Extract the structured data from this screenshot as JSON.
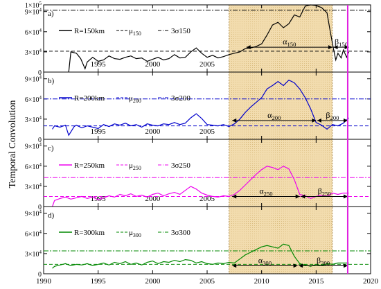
{
  "figure": {
    "ylabel": "Temporal Convolution",
    "x_ticks": [
      1990,
      1995,
      2000,
      2005,
      2010,
      2015,
      2020
    ],
    "colors": {
      "shade": "#f2dcae",
      "marker": "#e020e0"
    }
  },
  "chart_data": [
    {
      "type": "line",
      "panel": "a)",
      "series_name": "R=150km",
      "mu_label": "μ150",
      "sigma_label": "3σ150",
      "color": "#000000",
      "ylim": [
        0,
        100000
      ],
      "y_ticks": [
        "0",
        "3×10⁴",
        "6×10⁴",
        "9×10⁴",
        "1×10⁵"
      ],
      "x_ticks": [
        "1995",
        "2000",
        "2005"
      ],
      "mu": 31000,
      "sigma3": 92000,
      "alpha_label": "α150",
      "beta_label": "β150",
      "arrow_y": 37000,
      "alpha_range": [
        2008.6,
        2016.5
      ],
      "beta_range": [
        2016.6,
        2018.0
      ],
      "x": [
        1992.3,
        1992.5,
        1993.0,
        1993.4,
        1993.8,
        1994.0,
        1994.5,
        1995.0,
        1995.5,
        1996.0,
        1996.5,
        1997.0,
        1997.5,
        1998.0,
        1998.5,
        1999.0,
        1999.5,
        2000.0,
        2000.5,
        2001.0,
        2001.5,
        2002.0,
        2002.5,
        2003.0,
        2003.5,
        2004.0,
        2004.5,
        2005.0,
        2005.5,
        2006.0,
        2006.5,
        2007.0,
        2007.5,
        2008.0,
        2008.5,
        2009.0,
        2009.5,
        2010.0,
        2010.5,
        2011.0,
        2011.5,
        2012.0,
        2012.5,
        2013.0,
        2013.5,
        2014.0,
        2014.5,
        2015.0,
        2015.5,
        2016.0,
        2016.3,
        2016.6,
        2016.8,
        2017.0,
        2017.3,
        2017.5,
        2017.8,
        2018.0
      ],
      "y": [
        0,
        30000,
        28000,
        20000,
        5000,
        15000,
        22000,
        16000,
        18000,
        24000,
        20000,
        19000,
        22000,
        24000,
        20000,
        21000,
        16000,
        19000,
        22000,
        18000,
        20000,
        26000,
        21000,
        22000,
        30000,
        36000,
        28000,
        22000,
        25000,
        21000,
        23000,
        26000,
        28000,
        30000,
        35000,
        36000,
        38000,
        42000,
        55000,
        70000,
        74000,
        66000,
        72000,
        85000,
        82000,
        98000,
        100000,
        99000,
        96000,
        88000,
        60000,
        34000,
        18000,
        28000,
        21000,
        33000,
        22000,
        30000
      ]
    },
    {
      "type": "line",
      "panel": "b)",
      "series_name": "R=200km",
      "mu_label": "μ200",
      "sigma_label": "3σ200",
      "color": "#0000cc",
      "ylim": [
        0,
        100000
      ],
      "y_ticks": [
        "0",
        "3×10⁴",
        "6×10⁴",
        "9×10⁴"
      ],
      "x_ticks": [
        "1995",
        "2000",
        "2005"
      ],
      "mu": 20000,
      "sigma3": 60000,
      "alpha_label": "α200",
      "beta_label": "β200",
      "arrow_y": 28000,
      "alpha_range": [
        2007.3,
        2015.0
      ],
      "beta_range": [
        2015.1,
        2017.9
      ],
      "x": [
        1990.8,
        1991.0,
        1991.5,
        1992.0,
        1992.3,
        1992.8,
        1993.0,
        1993.5,
        1994.0,
        1994.5,
        1995.0,
        1995.5,
        1996.0,
        1996.5,
        1997.0,
        1997.5,
        1998.0,
        1998.5,
        1999.0,
        1999.5,
        2000.0,
        2000.5,
        2001.0,
        2001.5,
        2002.0,
        2002.5,
        2003.0,
        2003.5,
        2004.0,
        2004.5,
        2005.0,
        2005.5,
        2006.0,
        2006.5,
        2007.0,
        2007.5,
        2008.0,
        2008.5,
        2009.0,
        2009.5,
        2010.0,
        2010.5,
        2011.0,
        2011.5,
        2012.0,
        2012.5,
        2013.0,
        2013.5,
        2014.0,
        2014.5,
        2015.0,
        2015.5,
        2016.0,
        2016.5,
        2017.0,
        2017.5,
        2018.0
      ],
      "y": [
        15000,
        20000,
        18000,
        21000,
        6000,
        19000,
        21000,
        17000,
        20000,
        18000,
        16000,
        22000,
        19000,
        23000,
        21000,
        24000,
        20000,
        22000,
        18000,
        23000,
        21000,
        20000,
        23000,
        22000,
        25000,
        22000,
        24000,
        32000,
        38000,
        31000,
        22000,
        21000,
        20000,
        22000,
        19000,
        23000,
        30000,
        40000,
        48000,
        55000,
        62000,
        75000,
        80000,
        86000,
        80000,
        88000,
        84000,
        75000,
        62000,
        45000,
        25000,
        21000,
        15000,
        22000,
        20000,
        24000,
        32000
      ]
    },
    {
      "type": "line",
      "panel": "c)",
      "series_name": "R=250km",
      "mu_label": "μ250",
      "sigma_label": "3σ250",
      "color": "#ee00ee",
      "ylim": [
        0,
        100000
      ],
      "y_ticks": [
        "0",
        "3×10⁴",
        "6×10⁴",
        "9×10⁴"
      ],
      "x_ticks": [
        "1995",
        "2000",
        "2005"
      ],
      "mu": 15000,
      "sigma3": 43000,
      "alpha_label": "α250",
      "beta_label": "β250",
      "arrow_y": 15000,
      "alpha_range": [
        2007.3,
        2013.5
      ],
      "beta_range": [
        2013.6,
        2017.9
      ],
      "x": [
        1990.8,
        1991.0,
        1991.5,
        1992.0,
        1992.5,
        1993.0,
        1993.5,
        1994.0,
        1994.5,
        1995.0,
        1995.5,
        1996.0,
        1996.5,
        1997.0,
        1997.5,
        1998.0,
        1998.5,
        1999.0,
        1999.5,
        2000.0,
        2000.5,
        2001.0,
        2001.5,
        2002.0,
        2002.5,
        2003.0,
        2003.5,
        2004.0,
        2004.5,
        2005.0,
        2005.5,
        2006.0,
        2006.5,
        2007.0,
        2007.5,
        2008.0,
        2008.5,
        2009.0,
        2009.5,
        2010.0,
        2010.5,
        2011.0,
        2011.5,
        2012.0,
        2012.5,
        2013.0,
        2013.5,
        2014.0,
        2014.5,
        2015.0,
        2015.5,
        2016.0,
        2016.5,
        2017.0,
        2017.5,
        2018.0
      ],
      "y": [
        0,
        9000,
        12000,
        14000,
        11000,
        13000,
        15000,
        12000,
        14000,
        10000,
        13000,
        16000,
        14000,
        18000,
        16000,
        19000,
        15000,
        17000,
        14000,
        18000,
        20000,
        16000,
        19000,
        21000,
        18000,
        24000,
        30000,
        26000,
        20000,
        17000,
        15000,
        14000,
        16000,
        15000,
        18000,
        24000,
        32000,
        40000,
        48000,
        55000,
        60000,
        58000,
        55000,
        60000,
        56000,
        40000,
        18000,
        16000,
        12000,
        15000,
        17000,
        15000,
        20000,
        18000,
        20000,
        20000
      ]
    },
    {
      "type": "line",
      "panel": "d)",
      "series_name": "R=300km",
      "mu_label": "μ300",
      "sigma_label": "3σ300",
      "color": "#008800",
      "ylim": [
        0,
        100000
      ],
      "y_ticks": [
        "0",
        "3×10⁴",
        "6×10⁴",
        "9×10⁴"
      ],
      "x_ticks": [
        "1990",
        "1995",
        "2000",
        "2005",
        "2010",
        "2015",
        "2020"
      ],
      "mu": 14000,
      "sigma3": 34000,
      "alpha_label": "α300",
      "beta_label": "β300",
      "arrow_y": 12000,
      "alpha_range": [
        2007.3,
        2013.3
      ],
      "beta_range": [
        2013.4,
        2017.9
      ],
      "x": [
        1990.8,
        1991.0,
        1991.5,
        1992.0,
        1992.5,
        1993.0,
        1993.5,
        1994.0,
        1994.5,
        1995.0,
        1995.5,
        1996.0,
        1996.5,
        1997.0,
        1997.5,
        1998.0,
        1998.5,
        1999.0,
        1999.5,
        2000.0,
        2000.5,
        2001.0,
        2001.5,
        2002.0,
        2002.5,
        2003.0,
        2003.5,
        2004.0,
        2004.5,
        2005.0,
        2005.5,
        2006.0,
        2006.5,
        2007.0,
        2007.5,
        2008.0,
        2008.5,
        2009.0,
        2009.5,
        2010.0,
        2010.5,
        2011.0,
        2011.5,
        2012.0,
        2012.5,
        2013.0,
        2013.5,
        2014.0,
        2014.5,
        2015.0,
        2015.5,
        2016.0,
        2016.5,
        2017.0,
        2017.5,
        2018.0
      ],
      "y": [
        8000,
        11000,
        13000,
        15000,
        12000,
        14000,
        13000,
        15000,
        12000,
        14000,
        16000,
        13000,
        17000,
        15000,
        18000,
        14000,
        16000,
        13000,
        17000,
        19000,
        15000,
        18000,
        17000,
        20000,
        18000,
        21000,
        20000,
        16000,
        18000,
        15000,
        14000,
        16000,
        15000,
        17000,
        16000,
        22000,
        28000,
        32000,
        36000,
        40000,
        42000,
        40000,
        38000,
        44000,
        42000,
        26000,
        15000,
        13000,
        11000,
        14000,
        12000,
        15000,
        14000,
        16000,
        16000,
        16000
      ]
    }
  ]
}
